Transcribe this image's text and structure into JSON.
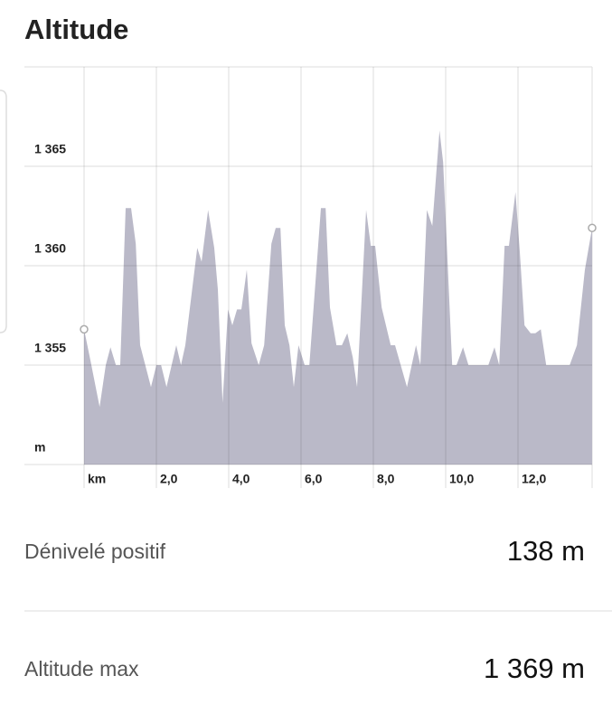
{
  "chart_data": {
    "type": "area",
    "title": "Altitude",
    "x": [
      0,
      0.18,
      0.43,
      0.6,
      0.73,
      0.88,
      1.0,
      1.15,
      1.3,
      1.43,
      1.55,
      1.85,
      2.0,
      2.13,
      2.28,
      2.55,
      2.68,
      2.8,
      3.13,
      3.25,
      3.43,
      3.6,
      3.7,
      3.83,
      3.98,
      4.1,
      4.23,
      4.35,
      4.5,
      4.63,
      4.83,
      4.98,
      5.18,
      5.3,
      5.43,
      5.55,
      5.68,
      5.8,
      5.93,
      6.1,
      6.23,
      6.55,
      6.68,
      6.8,
      6.98,
      7.13,
      7.28,
      7.43,
      7.55,
      7.8,
      7.93,
      8.05,
      8.23,
      8.48,
      8.6,
      8.93,
      9.18,
      9.3,
      9.48,
      9.63,
      9.83,
      9.93,
      10.18,
      10.3,
      10.48,
      10.63,
      11.18,
      11.35,
      11.48,
      11.63,
      11.75,
      11.93,
      12.05,
      12.18,
      12.35,
      12.48,
      12.63,
      12.78,
      13.43,
      13.63,
      13.85,
      14.05
    ],
    "values": [
      1356.8,
      1355.2,
      1352.9,
      1355,
      1355.9,
      1355,
      1355,
      1362.9,
      1362.9,
      1361.1,
      1356,
      1353.9,
      1355,
      1355,
      1353.9,
      1356,
      1355,
      1356,
      1360.9,
      1360.2,
      1362.8,
      1360.9,
      1358.8,
      1353.1,
      1357.8,
      1357,
      1357.8,
      1357.8,
      1359.8,
      1356.1,
      1355,
      1356,
      1361.1,
      1361.9,
      1361.9,
      1357,
      1356,
      1353.9,
      1356,
      1355,
      1355,
      1362.9,
      1362.9,
      1357.9,
      1356,
      1356,
      1356.6,
      1355.4,
      1353.9,
      1362.8,
      1361,
      1361,
      1357.9,
      1356,
      1356,
      1353.9,
      1356,
      1355,
      1362.8,
      1362,
      1366.8,
      1365.2,
      1355,
      1355,
      1355.9,
      1355,
      1355,
      1355.9,
      1355,
      1361,
      1361,
      1363.7,
      1360.7,
      1357,
      1356.6,
      1356.6,
      1356.8,
      1355,
      1355,
      1356,
      1359.8,
      1361.9
    ],
    "color": "#bab9c8",
    "xlim": [
      0,
      14.05
    ],
    "xticks": [
      {
        "value": 0,
        "label": "km"
      },
      {
        "value": 2,
        "label": "2,0"
      },
      {
        "value": 4,
        "label": "4,0"
      },
      {
        "value": 6,
        "label": "6,0"
      },
      {
        "value": 8,
        "label": "8,0"
      },
      {
        "value": 10,
        "label": "10,0"
      },
      {
        "value": 12,
        "label": "12,0"
      }
    ],
    "ylim": [
      1350,
      1370
    ],
    "yticks": [
      {
        "value": 1350,
        "label": "m"
      },
      {
        "value": 1355,
        "label": "1 355"
      },
      {
        "value": 1360,
        "label": "1 360"
      },
      {
        "value": 1365,
        "label": "1 365"
      }
    ],
    "grid": true
  },
  "stats": [
    {
      "label": "Dénivelé positif",
      "value": "138 m"
    },
    {
      "label": "Altitude max",
      "value": "1 369 m"
    }
  ]
}
